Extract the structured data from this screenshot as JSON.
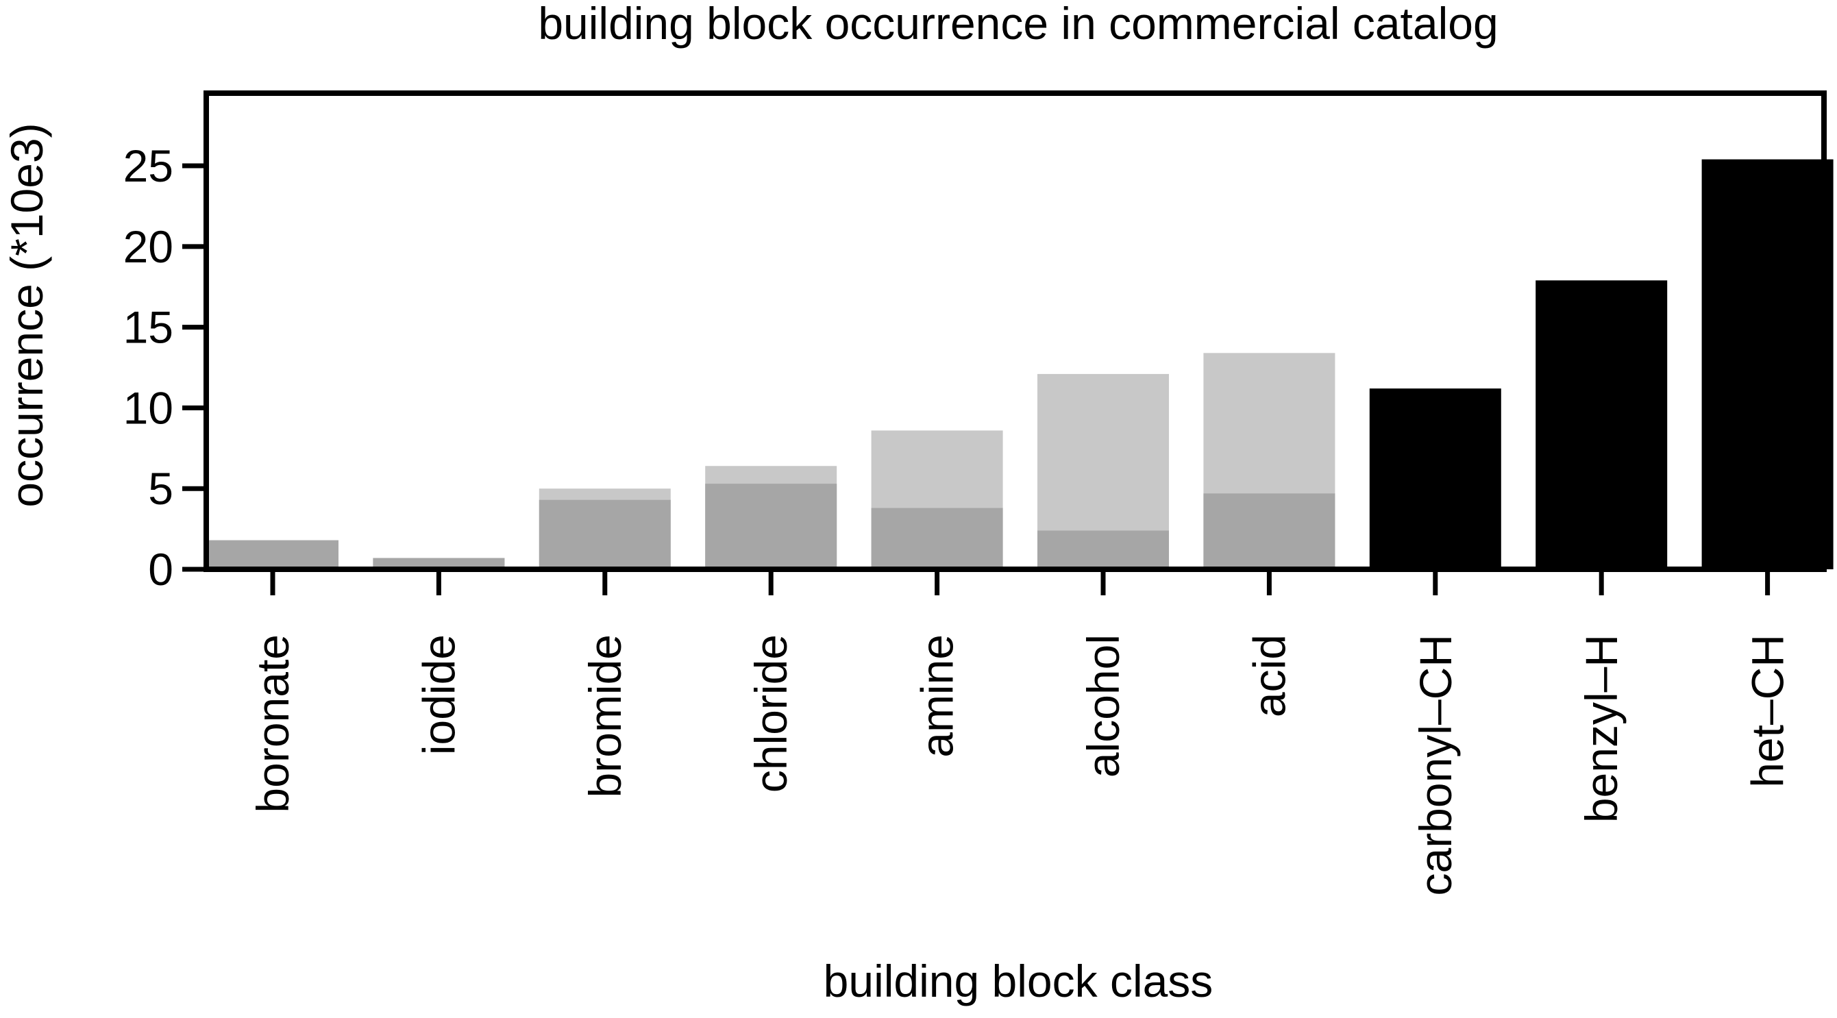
{
  "chart_data": {
    "type": "bar",
    "title": "building block occurrence in commercial catalog",
    "xlabel": "building block class",
    "ylabel": "occurrence (*10e3)",
    "categories": [
      "boronate",
      "iodide",
      "bromide",
      "chloride",
      "amine",
      "alcohol",
      "acid",
      "carbonyl–CH",
      "benzyl–H",
      "het–CH"
    ],
    "series": [
      {
        "values": [
          1.8,
          0.7,
          4.3,
          5.3,
          3.8,
          2.4,
          4.7,
          null,
          null,
          null
        ],
        "color": "#a6a6a6"
      },
      {
        "values": [
          1.8,
          0.7,
          5.0,
          6.4,
          8.6,
          12.1,
          13.4,
          null,
          null,
          null
        ],
        "color": "#c8c8c8"
      },
      {
        "values": [
          null,
          null,
          null,
          null,
          null,
          null,
          null,
          11.2,
          17.9,
          25.4
        ],
        "color": "#000000"
      }
    ],
    "ylim": [
      0,
      29.5
    ],
    "yticks": [
      0,
      5,
      10,
      15,
      20,
      25
    ],
    "grid": false
  }
}
